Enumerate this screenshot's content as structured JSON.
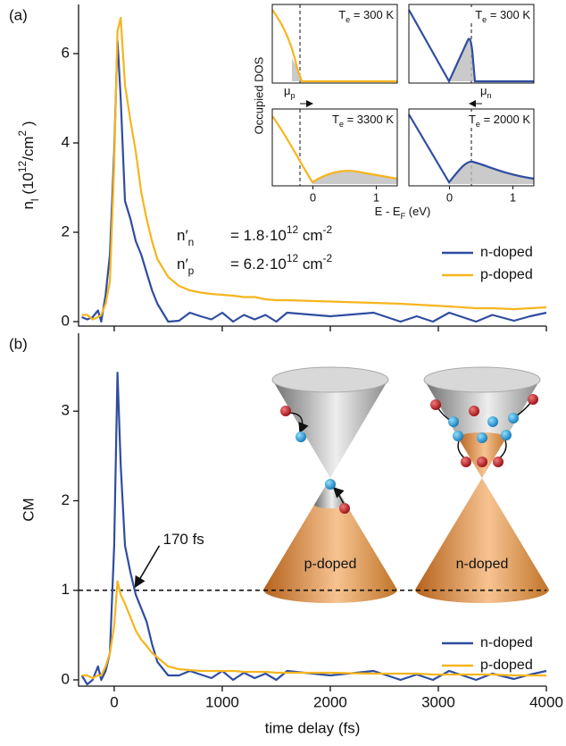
{
  "chart_data": [
    {
      "type": "line",
      "panel_label": "(a)",
      "y_label": [
        {
          "text": "n"
        },
        {
          "text": "l",
          "style": "sub"
        },
        {
          "text": " (10"
        },
        {
          "text": "12",
          "style": "sup"
        },
        {
          "text": "/cm"
        },
        {
          "text": "2",
          "style": "sup"
        },
        {
          "text": " )"
        }
      ],
      "x": [
        -300,
        -250,
        -200,
        -150,
        -120,
        -80,
        -40,
        0,
        30,
        60,
        100,
        150,
        200,
        250,
        300,
        350,
        400,
        500,
        600,
        700,
        800,
        900,
        1000,
        1100,
        1200,
        1300,
        1400,
        1500,
        1600,
        2000,
        2400,
        2650,
        2800,
        2950,
        3100,
        3350,
        3500,
        3700,
        3850,
        4000
      ],
      "xlim": [
        -330,
        4000
      ],
      "xticks": [
        0,
        1000,
        2000,
        3000,
        4000
      ],
      "ylim": [
        -0.1,
        7.1
      ],
      "yticks": [
        0,
        2,
        4,
        6
      ],
      "series": [
        {
          "name": "n-doped",
          "color": "#2f4da0",
          "values": [
            0.1,
            0.05,
            0.1,
            0.25,
            0.0,
            0.6,
            1.5,
            3.8,
            6.3,
            5.0,
            2.7,
            2.3,
            1.8,
            1.5,
            1.1,
            0.7,
            0.4,
            0.0,
            0.02,
            0.2,
            0.12,
            0.05,
            0.2,
            0.0,
            0.15,
            0.05,
            0.15,
            0.0,
            0.2,
            0.12,
            0.2,
            0.0,
            0.12,
            0.0,
            0.2,
            0.0,
            0.15,
            0.02,
            0.12,
            0.2
          ]
        },
        {
          "name": "p-doped",
          "color": "#f6b51e",
          "values": [
            0.15,
            0.15,
            0.05,
            0.1,
            0.15,
            0.4,
            0.9,
            3.5,
            6.5,
            6.8,
            5.3,
            4.5,
            3.8,
            2.9,
            2.3,
            1.8,
            1.4,
            1.0,
            0.8,
            0.7,
            0.65,
            0.62,
            0.6,
            0.58,
            0.55,
            0.55,
            0.5,
            0.48,
            0.48,
            0.45,
            0.42,
            0.4,
            0.38,
            0.36,
            0.34,
            0.3,
            0.3,
            0.28,
            0.3,
            0.32
          ]
        }
      ],
      "legend": "lower right",
      "annotations": [
        {
          "symbol": [
            {
              "text": "n′"
            },
            {
              "text": "n",
              "style": "sub"
            }
          ],
          "expression": [
            {
              "text": "= 1.8·10"
            },
            {
              "text": "12",
              "style": "sup"
            },
            {
              "text": " cm"
            },
            {
              "text": "-2",
              "style": "sup"
            }
          ]
        },
        {
          "symbol": [
            {
              "text": "n′"
            },
            {
              "text": "p",
              "style": "sub"
            }
          ],
          "expression": [
            {
              "text": "= 6.2·10"
            },
            {
              "text": "12",
              "style": "sup"
            },
            {
              "text": " cm"
            },
            {
              "text": "-2",
              "style": "sup"
            }
          ]
        }
      ],
      "inset": {
        "y_label": "Occupied DOS",
        "x_label": [
          {
            "text": "E - E"
          },
          {
            "text": "F",
            "style": "sub"
          },
          {
            "text": " (eV)"
          }
        ],
        "xlim": [
          -0.64,
          1.33
        ],
        "xticks": [
          0,
          1
        ],
        "mu_labels": [
          [
            {
              "text": "μ"
            },
            {
              "text": "p",
              "style": "sub"
            }
          ],
          [
            {
              "text": "μ"
            },
            {
              "text": "n",
              "style": "sub"
            }
          ]
        ],
        "panels": [
          {
            "label": [
              {
                "text": "T"
              },
              {
                "text": "e",
                "style": "sub"
              },
              {
                "text": " = 300 K"
              }
            ],
            "color": "#f6b51e"
          },
          {
            "label": [
              {
                "text": "T"
              },
              {
                "text": "e",
                "style": "sub"
              },
              {
                "text": " = 300 K"
              }
            ],
            "color": "#2f4da0"
          },
          {
            "label": [
              {
                "text": "T"
              },
              {
                "text": "e",
                "style": "sub"
              },
              {
                "text": " = 3300 K"
              }
            ],
            "color": "#f6b51e"
          },
          {
            "label": [
              {
                "text": "T"
              },
              {
                "text": "e",
                "style": "sub"
              },
              {
                "text": " = 2000 K"
              }
            ],
            "color": "#2f4da0"
          }
        ]
      }
    },
    {
      "type": "line",
      "panel_label": "(b)",
      "y_label": "CM",
      "x_label": "time delay (fs)",
      "x": [
        -300,
        -250,
        -200,
        -150,
        -120,
        -80,
        -40,
        0,
        30,
        60,
        100,
        150,
        200,
        250,
        300,
        350,
        400,
        500,
        600,
        700,
        800,
        900,
        1000,
        1100,
        1200,
        1300,
        1400,
        1500,
        1600,
        2000,
        2400,
        2650,
        2800,
        2950,
        3100,
        3350,
        3500,
        3700,
        3850,
        4000
      ],
      "xlim": [
        -330,
        4000
      ],
      "xticks": [
        0,
        1000,
        2000,
        3000,
        4000
      ],
      "ylim": [
        -0.07,
        3.87
      ],
      "yticks": [
        0,
        1,
        2,
        3
      ],
      "series": [
        {
          "name": "n-doped",
          "color": "#2f4da0",
          "values": [
            0.05,
            -0.05,
            0.0,
            0.15,
            0.0,
            0.1,
            0.3,
            1.5,
            3.43,
            2.4,
            1.5,
            1.2,
            0.95,
            0.8,
            0.65,
            0.4,
            0.2,
            0.05,
            0.05,
            0.1,
            0.06,
            0.02,
            0.1,
            0.0,
            0.08,
            0.02,
            0.07,
            0.0,
            0.1,
            0.05,
            0.1,
            0.0,
            0.06,
            0.0,
            0.1,
            0.0,
            0.07,
            0.01,
            0.06,
            0.1
          ]
        },
        {
          "name": "p-doped",
          "color": "#f6b51e",
          "values": [
            0.05,
            0.05,
            0.02,
            0.05,
            0.05,
            0.15,
            0.3,
            0.6,
            1.1,
            0.95,
            0.85,
            0.7,
            0.55,
            0.45,
            0.38,
            0.3,
            0.25,
            0.15,
            0.12,
            0.11,
            0.1,
            0.1,
            0.1,
            0.1,
            0.09,
            0.09,
            0.09,
            0.08,
            0.08,
            0.08,
            0.07,
            0.07,
            0.07,
            0.06,
            0.06,
            0.06,
            0.06,
            0.05,
            0.05,
            0.05
          ]
        }
      ],
      "legend": "lower right",
      "reference_line": {
        "y": 1,
        "style": "dashed"
      },
      "callout": {
        "text": "170 fs",
        "x": 170,
        "y": 1
      },
      "diagrams": [
        {
          "label": "p-doped"
        },
        {
          "label": "n-doped"
        }
      ]
    }
  ]
}
